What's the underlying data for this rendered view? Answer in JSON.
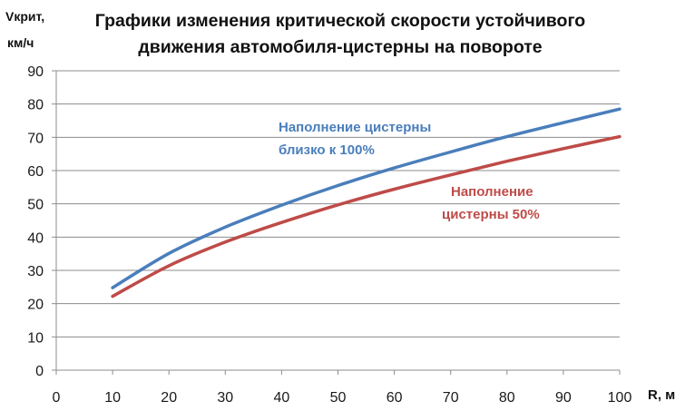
{
  "chart_data": {
    "type": "line",
    "title": [
      "Графики изменения критической скорости устойчивого",
      "движения автомобиля-цистерны на повороте"
    ],
    "ylabel": [
      "Vкрит,",
      "км/ч"
    ],
    "xlabel": "R, м",
    "xlim": [
      0,
      100
    ],
    "ylim": [
      0,
      90
    ],
    "x_ticks": [
      "0",
      "10",
      "20",
      "30",
      "40",
      "50",
      "60",
      "70",
      "80",
      "90",
      "100"
    ],
    "y_ticks": [
      "0",
      "10",
      "20",
      "30",
      "40",
      "50",
      "60",
      "70",
      "80",
      "90"
    ],
    "grid": "horizontal",
    "series": [
      {
        "name": [
          "Наполнение цистерны",
          "близко к 100%"
        ],
        "color": "#4a7ebb",
        "x": [
          10,
          20,
          30,
          40,
          50,
          60,
          70,
          80,
          90,
          100
        ],
        "y": [
          24.8,
          35.1,
          43.0,
          49.6,
          55.5,
          60.8,
          65.6,
          70.2,
          74.4,
          78.5
        ]
      },
      {
        "name": [
          "Наполнение",
          "цистерны 50%"
        ],
        "color": "#be4b48",
        "x": [
          10,
          20,
          30,
          40,
          50,
          60,
          70,
          80,
          90,
          100
        ],
        "y": [
          22.2,
          31.4,
          38.5,
          44.4,
          49.7,
          54.4,
          58.7,
          62.8,
          66.6,
          70.2
        ]
      }
    ]
  }
}
